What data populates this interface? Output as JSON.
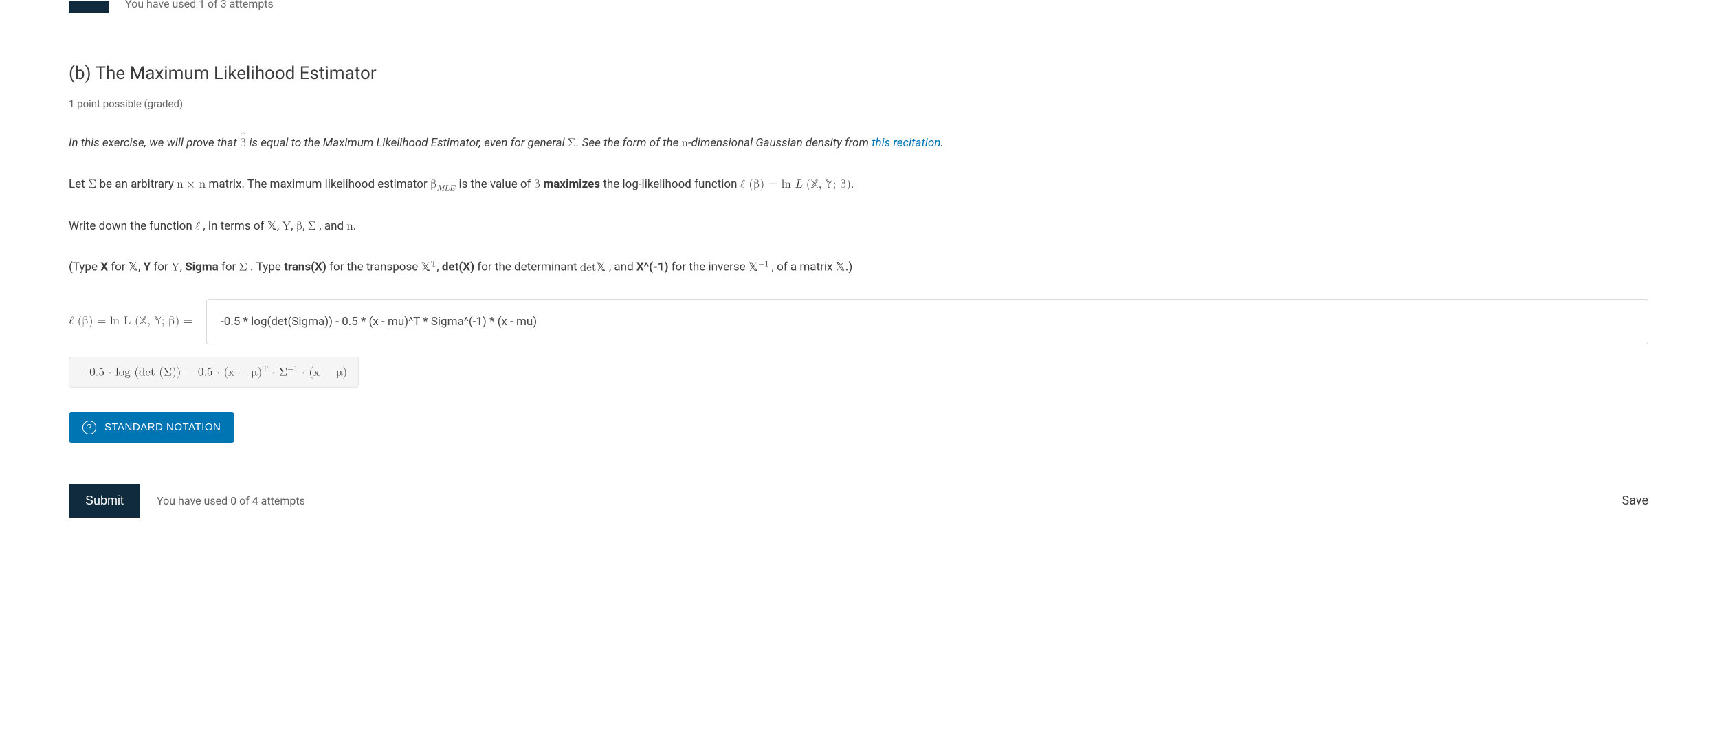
{
  "colors": {
    "primary_button": "#0075b4",
    "dark_button": "#0f2b3d",
    "link": "#0075b4",
    "text": "#3c3c3c",
    "muted": "#646464",
    "border": "#e5e5e5",
    "input_border": "#d9d9d9",
    "preview_bg": "#f5f5f5",
    "background": "#ffffff"
  },
  "top": {
    "partial_attempts_text": "You have used 1 of 3 attempts"
  },
  "section": {
    "title": "(b) The Maximum Likelihood Estimator",
    "points": "1 point possible (graded)"
  },
  "body": {
    "intro_prefix": "In this exercise, we will prove that ",
    "intro_mid": " is equal to the Maximum Likelihood Estimator, even for general ",
    "intro_after_sigma": ". See the form of the ",
    "n_dim_text": "-dimensional Gaussian density from ",
    "recitation_link": "this recitation",
    "intro_end": ".",
    "p2_a": "Let ",
    "p2_b": " be an arbitrary ",
    "p2_c": " matrix. The maximum likelihood estimator ",
    "p2_d": " is the value of ",
    "p2_maximizes": "maximizes",
    "p2_e": " the log-likelihood function ",
    "p2_end": ".",
    "p3_a": "Write down the function ",
    "p3_b": ", in terms of ",
    "p3_and": ", and ",
    "p3_end": ".",
    "p4_a": "(Type ",
    "p4_X": "X",
    "p4_for": " for ",
    "p4_Y": "Y",
    "p4_Sigma": "Sigma",
    "p4_type2": ". Type ",
    "p4_transX": "trans(X)",
    "p4_transpose": " for the transpose ",
    "p4_detX": "det(X)",
    "p4_determinant": " for the determinant ",
    "p4_and": ", and ",
    "p4_Xinv": "X^(-1)",
    "p4_inverse": " for the inverse ",
    "p4_ofmatrix": ", of a matrix ",
    "p4_end": ".)"
  },
  "answer": {
    "label_math": "ℓ (β) = ln L (𝕏, 𝕐; β) =",
    "input_value": "-0.5 * log(det(Sigma)) - 0.5 * (x - mu)^T * Sigma^(-1) * (x - mu)",
    "preview": "−0.5 · log (det (Σ)) − 0.5 · (x − μ)",
    "preview_sup": "T",
    "preview_mid": " · Σ",
    "preview_sup2": "−1",
    "preview_end": " · (x − μ)"
  },
  "buttons": {
    "standard_notation": "STANDARD NOTATION",
    "submit": "Submit",
    "save": "Save"
  },
  "footer": {
    "attempts": "You have used 0 of 4 attempts"
  },
  "symbols": {
    "beta": "β",
    "beta_hat": "β",
    "sigma_upper": "Σ",
    "n": "n",
    "times": "×",
    "bbX": "𝕏",
    "bbY": "𝕐",
    "Y": "Y",
    "ell": "ℓ",
    "beta_mle": "β",
    "mle_sub": "MLE",
    "det": "det",
    "XT_sup": "T",
    "Xinv_sup": "−1",
    "comma_sep": ", "
  }
}
